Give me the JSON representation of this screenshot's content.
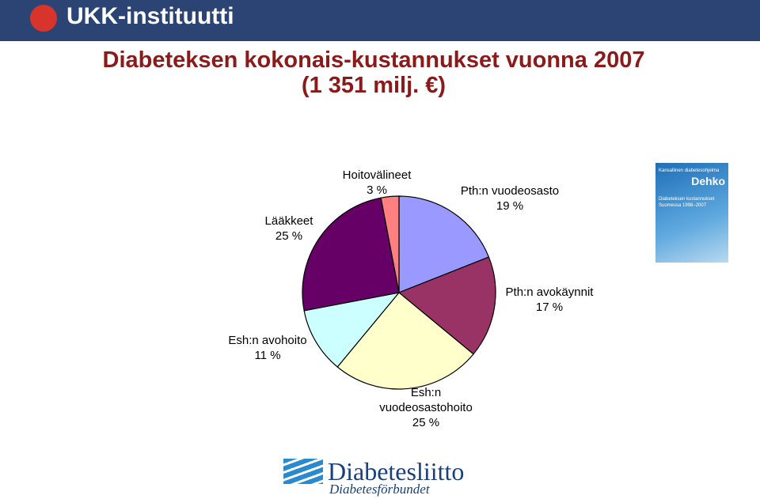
{
  "header": {
    "logo_text": "UKK-instituutti"
  },
  "chart_data": {
    "type": "pie",
    "title": "Diabeteksen kokonais-kustannukset vuonna 2007",
    "subtitle": "(1 351 milj. €)",
    "categories": [
      "Pth:n vuodeosasto",
      "Pth:n avokäynnit",
      "Esh:n vuodeosastohoito",
      "Esh:n avohoito",
      "Lääkkeet",
      "Hoitovälineet"
    ],
    "values": [
      19,
      17,
      25,
      11,
      25,
      3
    ],
    "value_labels": [
      "19 %",
      "17 %",
      "25 %",
      "11 %",
      "25 %",
      "3 %"
    ],
    "colors": [
      "#9999ff",
      "#993366",
      "#ffffcc",
      "#ccffff",
      "#660066",
      "#ff8080"
    ]
  },
  "book_cover": {
    "series": "Kansallinen diabetesohjelma",
    "brand": "Dehko",
    "title": "Diabeteksen kustannukset",
    "subtitle": "Suomessa 1998–2007"
  },
  "footer": {
    "logo_main": "Diabetesliitto",
    "logo_sub": "Diabetesförbundet"
  }
}
